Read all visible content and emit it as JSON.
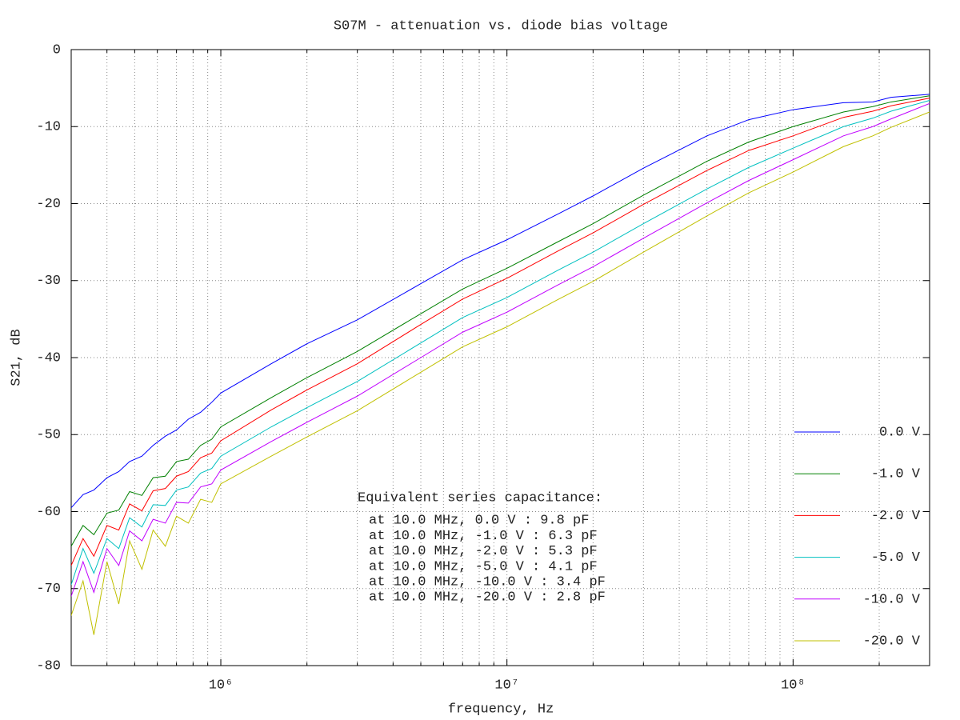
{
  "chart_data": {
    "type": "line",
    "title": "S07M - attenuation vs. diode bias voltage",
    "x_label": "frequency, Hz",
    "y_label": "S21, dB",
    "xscale": "log",
    "grid": true,
    "legend_position": "lower right",
    "xlim": [
      300000,
      300000000
    ],
    "ylim": [
      -80,
      0
    ],
    "xticks": [
      {
        "value": 1000000,
        "label": "10⁶"
      },
      {
        "value": 10000000,
        "label": "10⁷"
      },
      {
        "value": 100000000,
        "label": "10⁸"
      }
    ],
    "xminorticks": [
      400000,
      500000,
      600000,
      700000,
      800000,
      900000,
      2000000,
      3000000,
      4000000,
      5000000,
      6000000,
      7000000,
      8000000,
      9000000,
      20000000,
      30000000,
      40000000,
      50000000,
      60000000,
      70000000,
      80000000,
      90000000,
      200000000
    ],
    "yticks": [
      0,
      -10,
      -20,
      -30,
      -40,
      -50,
      -60,
      -70,
      -80
    ],
    "x": [
      300000,
      330000,
      360000,
      400000,
      440000,
      480000,
      530000,
      580000,
      640000,
      700000,
      770000,
      850000,
      930000,
      1000000,
      1500000,
      2000000,
      3000000,
      5000000,
      7000000,
      10000000,
      15000000,
      20000000,
      30000000,
      50000000,
      70000000,
      100000000,
      150000000,
      190000000,
      220000000,
      300000000
    ],
    "series": [
      {
        "name": "0.0 V",
        "color": "#0000ff",
        "values": [
          -59.5,
          -57.8,
          -57.2,
          -55.6,
          -54.8,
          -53.5,
          -52.8,
          -51.4,
          -50.2,
          -49.4,
          -48.0,
          -47.1,
          -45.8,
          -44.6,
          -40.8,
          -38.2,
          -35.1,
          -30.4,
          -27.3,
          -24.7,
          -21.4,
          -19.0,
          -15.4,
          -11.2,
          -9.1,
          -7.8,
          -6.9,
          -6.8,
          -6.2,
          -5.8
        ]
      },
      {
        "name": "-1.0 V",
        "color": "#008000",
        "values": [
          -64.5,
          -61.8,
          -63.0,
          -60.2,
          -59.8,
          -57.4,
          -57.9,
          -55.6,
          -55.4,
          -53.5,
          -53.2,
          -51.4,
          -50.6,
          -49.0,
          -45.2,
          -42.6,
          -39.2,
          -34.3,
          -31.1,
          -28.4,
          -25.0,
          -22.6,
          -18.9,
          -14.5,
          -12.0,
          -10.0,
          -8.1,
          -7.4,
          -6.8,
          -6.0
        ]
      },
      {
        "name": "-2.0 V",
        "color": "#ff0000",
        "values": [
          -67.0,
          -63.5,
          -65.8,
          -61.8,
          -62.4,
          -59.0,
          -59.9,
          -57.3,
          -57.0,
          -55.4,
          -54.8,
          -53.0,
          -52.4,
          -50.8,
          -46.8,
          -44.2,
          -40.8,
          -35.7,
          -32.4,
          -29.7,
          -26.2,
          -23.8,
          -20.1,
          -15.7,
          -13.1,
          -11.2,
          -8.8,
          -8.0,
          -7.3,
          -6.3
        ]
      },
      {
        "name": "-5.0 V",
        "color": "#00c0c0",
        "values": [
          -69.5,
          -64.8,
          -68.0,
          -63.5,
          -64.8,
          -60.8,
          -62.0,
          -59.1,
          -59.2,
          -57.2,
          -56.8,
          -55.0,
          -54.4,
          -52.8,
          -49.0,
          -46.5,
          -43.1,
          -38.1,
          -34.8,
          -32.2,
          -28.7,
          -26.3,
          -22.6,
          -18.1,
          -15.3,
          -12.8,
          -10.0,
          -8.9,
          -8.0,
          -6.6
        ]
      },
      {
        "name": "-10.0 V",
        "color": "#c000ff",
        "values": [
          -71.0,
          -66.5,
          -70.5,
          -64.8,
          -67.0,
          -62.5,
          -63.8,
          -61.0,
          -61.5,
          -58.8,
          -58.9,
          -56.8,
          -56.4,
          -54.6,
          -50.9,
          -48.4,
          -45.0,
          -40.0,
          -36.7,
          -34.1,
          -30.6,
          -28.2,
          -24.5,
          -19.9,
          -17.0,
          -14.3,
          -11.2,
          -10.0,
          -9.0,
          -7.0
        ]
      },
      {
        "name": "-20.0 V",
        "color": "#c0c000",
        "values": [
          -73.5,
          -69.0,
          -76.0,
          -66.5,
          -72.0,
          -63.8,
          -67.5,
          -62.4,
          -64.5,
          -60.6,
          -61.5,
          -58.4,
          -58.8,
          -56.4,
          -52.8,
          -50.3,
          -46.9,
          -41.9,
          -38.6,
          -36.0,
          -32.5,
          -30.1,
          -26.3,
          -21.6,
          -18.6,
          -15.9,
          -12.6,
          -11.2,
          -10.1,
          -8.1
        ]
      }
    ],
    "annotations": [
      "Equivalent series capacitance:",
      "at 10.0 MHz, 0.0 V : 9.8 pF",
      "at 10.0 MHz, -1.0 V : 6.3 pF",
      "at 10.0 MHz, -2.0 V : 5.3 pF",
      "at 10.0 MHz, -5.0 V : 4.1 pF",
      "at 10.0 MHz, -10.0 V : 3.4 pF",
      "at 10.0 MHz, -20.0 V : 2.8 pF"
    ]
  }
}
